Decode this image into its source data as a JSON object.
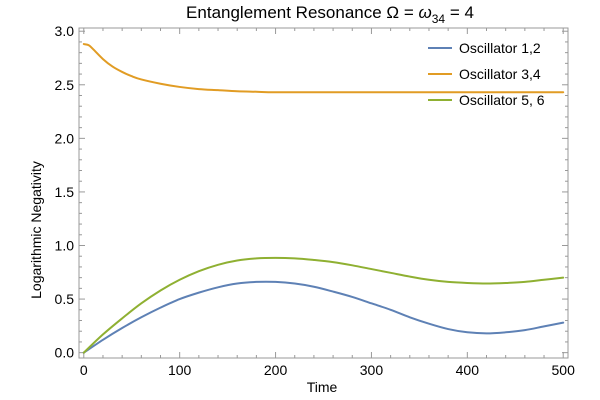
{
  "chart_data": {
    "type": "line",
    "title": {
      "prefix": "Entanglement Resonance Ω = ",
      "omega": "ω",
      "subscript": "34",
      "suffix": " = 4"
    },
    "xlabel": "Time",
    "ylabel": "Logarithmic Negativity",
    "xlim": [
      -5,
      505
    ],
    "ylim": [
      -0.05,
      3.03
    ],
    "xticks": [
      0,
      100,
      200,
      300,
      400,
      500
    ],
    "xtick_labels": [
      "0",
      "100",
      "200",
      "300",
      "400",
      "500"
    ],
    "yticks": [
      0.0,
      0.5,
      1.0,
      1.5,
      2.0,
      2.5,
      3.0
    ],
    "ytick_labels": [
      "0.0",
      "0.5",
      "1.0",
      "1.5",
      "2.0",
      "2.5",
      "3.0"
    ],
    "grid": false,
    "legend_position": "top-right",
    "series": [
      {
        "name": "Oscillator 1,2",
        "color": "#5e81b5",
        "x": [
          0,
          20,
          40,
          60,
          80,
          100,
          120,
          140,
          160,
          180,
          200,
          220,
          240,
          260,
          280,
          300,
          320,
          340,
          360,
          380,
          400,
          420,
          440,
          460,
          480,
          500
        ],
        "y": [
          0.0,
          0.12,
          0.23,
          0.33,
          0.42,
          0.5,
          0.56,
          0.61,
          0.645,
          0.66,
          0.66,
          0.645,
          0.615,
          0.57,
          0.52,
          0.46,
          0.4,
          0.33,
          0.27,
          0.22,
          0.19,
          0.18,
          0.19,
          0.21,
          0.245,
          0.28
        ]
      },
      {
        "name": "Oscillator 3,4",
        "color": "#e19c24",
        "x": [
          0,
          5,
          10,
          20,
          30,
          40,
          50,
          60,
          80,
          100,
          120,
          140,
          160,
          180,
          200,
          250,
          300,
          350,
          400,
          450,
          500
        ],
        "y": [
          2.88,
          2.87,
          2.83,
          2.74,
          2.67,
          2.62,
          2.58,
          2.55,
          2.51,
          2.48,
          2.46,
          2.45,
          2.44,
          2.435,
          2.43,
          2.43,
          2.43,
          2.43,
          2.43,
          2.43,
          2.43
        ]
      },
      {
        "name": "Oscillator 5, 6",
        "color": "#8fb032",
        "x": [
          0,
          20,
          40,
          60,
          80,
          100,
          120,
          140,
          160,
          180,
          200,
          220,
          240,
          260,
          280,
          300,
          320,
          340,
          360,
          380,
          400,
          420,
          440,
          460,
          480,
          500
        ],
        "y": [
          0.0,
          0.17,
          0.32,
          0.46,
          0.58,
          0.68,
          0.76,
          0.82,
          0.86,
          0.88,
          0.885,
          0.88,
          0.865,
          0.845,
          0.815,
          0.78,
          0.745,
          0.71,
          0.68,
          0.66,
          0.65,
          0.645,
          0.65,
          0.66,
          0.68,
          0.7
        ]
      }
    ]
  }
}
